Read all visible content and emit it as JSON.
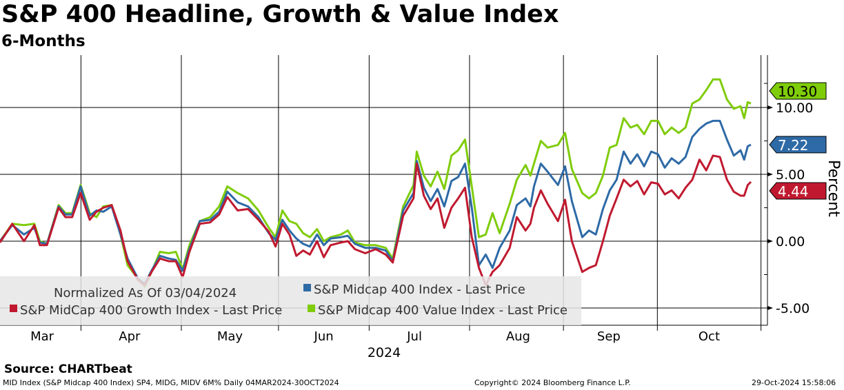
{
  "title": "S&P 400 Headline, Growth & Value Index",
  "subtitle": "6-Months",
  "source": "Source: CHARTbeat",
  "footer": {
    "left": "MID Index (S&P Midcap 400 Index) SP4, MIDG, MIDV 6M%  Daily 04MAR2024-30OCT2024",
    "center": "Copyright© 2024 Bloomberg Finance L.P.",
    "right": "29-Oct-2024 15:58:06"
  },
  "chart_data": {
    "type": "line",
    "title": "S&P 400 Headline, Growth & Value Index",
    "ylabel": "Percent",
    "xlabel": "2024",
    "ylim": [
      -6.2,
      12.5
    ],
    "xlim_days": [
      0,
      237
    ],
    "x_unit": "days since 2024-03-04",
    "yticks": [
      -5,
      0,
      5,
      10
    ],
    "ytick_labels": [
      "-5.00",
      "0.00",
      "5.00",
      "10.00"
    ],
    "month_labels": [
      "Mar",
      "Apr",
      "May",
      "Jun",
      "Jul",
      "Aug",
      "Sep",
      "Oct"
    ],
    "month_label_days": [
      13,
      40,
      71,
      100,
      128,
      160,
      188,
      219
    ],
    "month_boundary_days": [
      25,
      56,
      86,
      114,
      145,
      174,
      203,
      235
    ],
    "grid": true,
    "legend_header": "Normalized As Of 03/04/2024",
    "legend_position": "bottom-left",
    "x": [
      0,
      3.8,
      7.4,
      10.6,
      12.3,
      14.5,
      18.1,
      20.2,
      22.3,
      24.9,
      27.7,
      29.8,
      31.9,
      34.5,
      37.2,
      39.4,
      42.6,
      44.7,
      46.8,
      49.4,
      52.1,
      54.3,
      56.4,
      58.5,
      61.7,
      64.9,
      67.7,
      70.2,
      73.4,
      76.6,
      79.8,
      83,
      85.1,
      87.2,
      89.4,
      91.5,
      93.6,
      95.7,
      97.9,
      100,
      102.1,
      105.3,
      107.4,
      109.6,
      112.8,
      116,
      119.1,
      121.3,
      124.5,
      127.7,
      128.7,
      130.9,
      133,
      135.1,
      137.2,
      139.4,
      141.5,
      143.6,
      145.7,
      147.9,
      150,
      152.1,
      154.3,
      157.4,
      159.6,
      162.3,
      163.8,
      164.9,
      167,
      169.1,
      172.3,
      174.5,
      176.6,
      179.8,
      181.9,
      184,
      186.2,
      188.3,
      190.4,
      192.6,
      194.7,
      196.8,
      198.9,
      201.1,
      203.2,
      205.3,
      207.4,
      209.6,
      211.7,
      213.8,
      216,
      218.1,
      220.2,
      222.3,
      224.5,
      226.6,
      228.7,
      229.8,
      230.9,
      231.9
    ],
    "series": [
      {
        "name": "S&P Midcap 400 Index - Last Price",
        "color": "#2e6aa6",
        "last": "7.22",
        "values": [
          0,
          1.2,
          0.5,
          1,
          -0.1,
          -0.2,
          2.6,
          2,
          2,
          4.1,
          1.9,
          2.3,
          2.2,
          2.6,
          0.5,
          -1.3,
          -2.8,
          -3.2,
          -2.2,
          -1.1,
          -1.3,
          -1.4,
          -2.2,
          -0.6,
          1.5,
          1.6,
          2.2,
          3.7,
          2.9,
          2.6,
          1.8,
          0.6,
          0.1,
          1.6,
          0.8,
          0.2,
          -0.2,
          -0.4,
          0.5,
          -0.3,
          0.2,
          0.3,
          0.4,
          -0.2,
          -0.5,
          -0.5,
          -0.7,
          -1.5,
          2.3,
          3.6,
          6.0,
          4.0,
          3.0,
          3.9,
          2.6,
          4.5,
          4.8,
          5.8,
          2.5,
          -1.8,
          -1.0,
          -2.0,
          -0.5,
          0.8,
          2.7,
          3.2,
          2.6,
          4.1,
          5.8,
          5.2,
          4.2,
          5.6,
          3.0,
          0.3,
          0.8,
          0.5,
          2.4,
          3.8,
          4.6,
          6.7,
          5.8,
          6.5,
          5.6,
          6.7,
          6.5,
          5.5,
          6.2,
          5.8,
          6.3,
          7.8,
          8.4,
          8.8,
          9.0,
          9.0,
          7.6,
          6.4,
          6.8,
          6.1,
          7.1,
          7.22
        ]
      },
      {
        "name": "S&P MidCap 400 Growth Index - Last Price",
        "color": "#c0192f",
        "last": "4.44",
        "values": [
          -0.1,
          1.3,
          0,
          1.2,
          -0.3,
          -0.3,
          2.5,
          1.8,
          1.8,
          3.6,
          1.6,
          2.2,
          2.5,
          2.7,
          0.8,
          -1.5,
          -2.9,
          -3.3,
          -2.3,
          -1.3,
          -1.5,
          -1.5,
          -2.7,
          -0.8,
          1.3,
          1.4,
          2.0,
          3.3,
          2.3,
          2.4,
          1.6,
          0.7,
          -0.4,
          1.3,
          0.5,
          -1.1,
          -0.7,
          -1.0,
          0.0,
          -1.2,
          -0.3,
          -0.1,
          0.0,
          -0.6,
          -0.9,
          -0.6,
          -1.0,
          -1.6,
          1.9,
          3.2,
          5.8,
          3.4,
          2.4,
          3.2,
          1.0,
          2.5,
          3.2,
          4.0,
          0.3,
          -2.0,
          -3.3,
          -2.3,
          -1.8,
          -0.5,
          1.8,
          0.8,
          1.3,
          2.5,
          3.8,
          2.8,
          1.5,
          3.1,
          0.0,
          -2.3,
          -2.0,
          -1.8,
          0.0,
          1.9,
          3.2,
          4.6,
          4.1,
          4.5,
          3.5,
          4.4,
          4.3,
          3.5,
          3.8,
          3.2,
          4.0,
          4.6,
          6.1,
          5.3,
          6.4,
          6.3,
          4.6,
          3.7,
          3.4,
          3.4,
          4.2,
          4.44
        ]
      },
      {
        "name": "S&P Midcap 400 Value Index - Last Price",
        "color": "#7fcc0a",
        "last": "10.30",
        "values": [
          0,
          1.3,
          1.2,
          1.3,
          0,
          -0.2,
          2.7,
          2.1,
          2.1,
          4.2,
          2.1,
          1.8,
          2.6,
          2.7,
          0.5,
          -1.8,
          -2.8,
          -3.4,
          -2.3,
          -0.8,
          -0.9,
          -0.8,
          -2.1,
          -0.3,
          1.5,
          1.8,
          2.6,
          4.1,
          3.6,
          3.2,
          2.3,
          1.0,
          0.3,
          2.3,
          1.5,
          1.3,
          0.6,
          0.3,
          0.9,
          0,
          0.3,
          0.5,
          0.8,
          -0.1,
          -0.3,
          -0.3,
          -0.5,
          -1.3,
          2.6,
          4.2,
          6.7,
          4.9,
          4.1,
          5.2,
          3.9,
          6.4,
          6.8,
          7.6,
          4.1,
          0.3,
          0.5,
          2.1,
          0.6,
          2.8,
          4.6,
          5.7,
          4.9,
          5.8,
          7.5,
          7.0,
          7.2,
          8.1,
          5.4,
          3.6,
          3.2,
          3.6,
          4.9,
          7.0,
          7.2,
          9.2,
          8.5,
          8.7,
          8.0,
          9.0,
          9.0,
          8.0,
          8.5,
          8.1,
          8.5,
          10.3,
          10.6,
          11.3,
          12.1,
          12.1,
          10.6,
          9.9,
          10.1,
          9.2,
          10.4,
          10.3
        ]
      }
    ]
  }
}
